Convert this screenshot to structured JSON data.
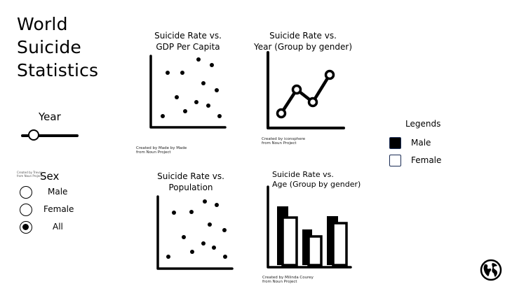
{
  "title_lines": [
    "World",
    "Suicide",
    "Statistics"
  ],
  "year_filter": {
    "label": "Year",
    "value_fraction": 0.22
  },
  "sex_filter": {
    "label": "Sex",
    "credit": "Created by Trevor from Noun Project",
    "options": [
      {
        "label": "Male",
        "selected": false
      },
      {
        "label": "Female",
        "selected": false
      },
      {
        "label": "All",
        "selected": true
      }
    ]
  },
  "charts": [
    {
      "id": "gdp",
      "title_lines": [
        "Suicide Rate vs.",
        "GDP Per Capita"
      ],
      "credit_lines": [
        "Created by Made by Made",
        "from Noun Project"
      ],
      "icon": "scatter-plot-icon"
    },
    {
      "id": "year",
      "title_lines": [
        "Suicide Rate vs.",
        "Year (Group by gender)"
      ],
      "credit_lines": [
        "Created by iconsphere",
        "from Noun Project"
      ],
      "icon": "line-chart-icon"
    },
    {
      "id": "population",
      "title_lines": [
        "Suicide Rate vs.",
        "Population"
      ],
      "credit_lines": [],
      "icon": "scatter-plot-icon"
    },
    {
      "id": "age",
      "title_lines": [
        "Suicide Rate vs.",
        "Age (Group by gender)"
      ],
      "credit_lines": [
        "Created by Milinda Courey",
        "from Noun Project"
      ],
      "icon": "bar-chart-icon"
    }
  ],
  "legend": {
    "title": "Legends",
    "items": [
      {
        "label": "Male",
        "color": "#000000"
      },
      {
        "label": "Female",
        "color": "#ffffff"
      }
    ]
  },
  "footer": {
    "icon": "globe-icon"
  }
}
